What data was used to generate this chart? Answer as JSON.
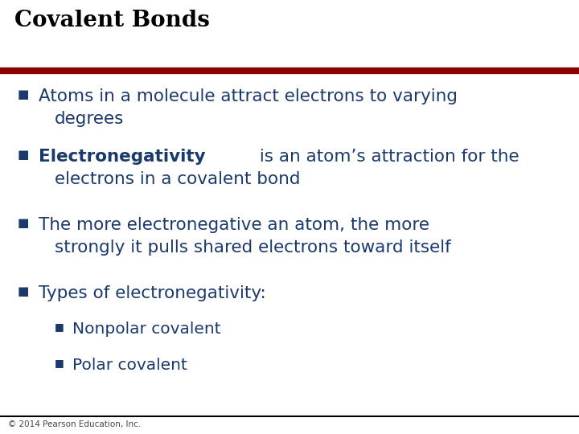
{
  "title": "Covalent Bonds",
  "title_fontsize": 20,
  "title_color": "#000000",
  "bg_color": "#ffffff",
  "divider_color_top": "#8B0000",
  "divider_color_bottom": "#000000",
  "bullet_color": "#1a3a6b",
  "text_color": "#1a3a6b",
  "footer": "© 2014 Pearson Education, Inc.",
  "footer_fontsize": 7.5,
  "footer_color": "#444444",
  "main_fontsize": 15.5,
  "sub_fontsize": 14.5,
  "bullet_items": [
    {
      "level": 1,
      "line1": "Atoms in a molecule attract electrons to varying",
      "line2": "degrees",
      "bold_prefix": ""
    },
    {
      "level": 1,
      "line1_bold": "Electronegativity",
      "line1_normal": " is an atom’s attraction for the",
      "line2": "electrons in a covalent bond",
      "bold_prefix": "Electronegativity"
    },
    {
      "level": 1,
      "line1": "The more electronegative an atom, the more",
      "line2": "strongly it pulls shared electrons toward itself",
      "bold_prefix": ""
    },
    {
      "level": 1,
      "line1": "Types of electronegativity:",
      "line2": "",
      "bold_prefix": ""
    },
    {
      "level": 2,
      "line1": "Nonpolar covalent",
      "line2": "",
      "bold_prefix": ""
    },
    {
      "level": 2,
      "line1": "Polar covalent",
      "line2": "",
      "bold_prefix": ""
    }
  ]
}
